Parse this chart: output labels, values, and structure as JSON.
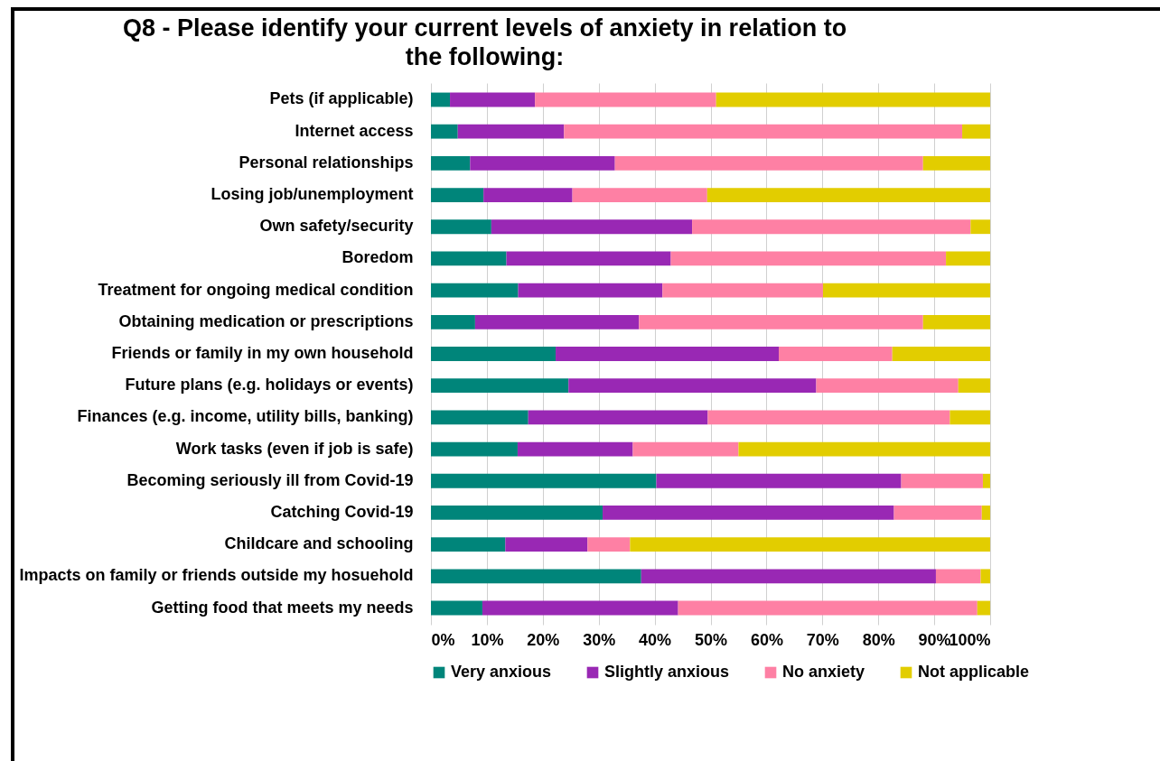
{
  "chart_data": {
    "type": "bar",
    "orientation": "horizontal",
    "stacked": true,
    "title": "Q8 - Please identify your current levels of anxiety in relation to the following:",
    "categories": [
      "Pets (if applicable)",
      "Internet access",
      "Personal relationships",
      "Losing job/unemployment",
      "Own safety/security",
      "Boredom",
      "Treatment for ongoing medical condition",
      "Obtaining medication or prescriptions",
      "Friends or family in my own household",
      "Future plans (e.g. holidays or events)",
      "Finances (e.g. income, utility bills, banking)",
      "Work tasks (even if job is safe)",
      "Becoming seriously ill from Covid-19",
      "Catching Covid-19",
      "Childcare and schooling",
      "Impacts on family or friends outside my hosuehold",
      "Getting food that meets my needs"
    ],
    "series": [
      {
        "name": "Very anxious",
        "color": "#00857a",
        "values": [
          3.4,
          4.8,
          7.0,
          9.4,
          10.8,
          13.5,
          15.6,
          7.9,
          22.3,
          24.6,
          17.4,
          15.5,
          40.3,
          30.7,
          13.3,
          37.6,
          9.2
        ]
      },
      {
        "name": "Slightly anxious",
        "color": "#9928b4",
        "values": [
          15.2,
          19.0,
          25.9,
          15.9,
          35.9,
          29.4,
          25.8,
          29.3,
          39.9,
          44.3,
          32.1,
          20.6,
          43.8,
          52.1,
          14.7,
          52.7,
          35.0
        ]
      },
      {
        "name": "No anxiety",
        "color": "#fe80a4",
        "values": [
          32.4,
          71.2,
          55.1,
          24.1,
          49.8,
          49.2,
          28.7,
          50.8,
          20.3,
          25.4,
          43.3,
          18.9,
          14.6,
          15.7,
          7.6,
          8.0,
          53.5
        ]
      },
      {
        "name": "Not applicable",
        "color": "#e2cd00",
        "values": [
          49.0,
          5.0,
          12.0,
          50.6,
          3.5,
          7.9,
          29.9,
          12.0,
          17.5,
          5.7,
          7.2,
          45.0,
          1.3,
          1.5,
          64.4,
          1.7,
          2.3
        ]
      }
    ],
    "xlim": [
      0,
      100
    ],
    "xticks": [
      {
        "value": 0,
        "label": "0%"
      },
      {
        "value": 10,
        "label": "10%"
      },
      {
        "value": 20,
        "label": "20%"
      },
      {
        "value": 30,
        "label": "30%"
      },
      {
        "value": 40,
        "label": "40%"
      },
      {
        "value": 50,
        "label": "50%"
      },
      {
        "value": 60,
        "label": "60%"
      },
      {
        "value": 70,
        "label": "70%"
      },
      {
        "value": 80,
        "label": "80%"
      },
      {
        "value": 90,
        "label": "90%"
      },
      {
        "value": 100,
        "label": "100%"
      }
    ],
    "grid": "x",
    "legend": "bottom"
  }
}
